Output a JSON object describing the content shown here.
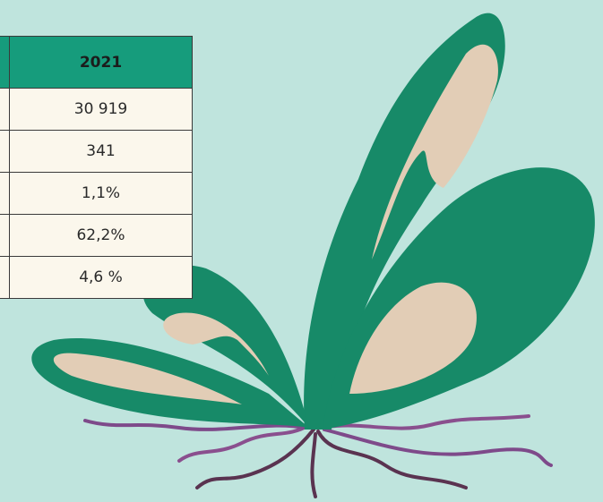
{
  "table": {
    "header": "2021",
    "rows": [
      "30 919",
      "341",
      "1,1%",
      "62,2%",
      "4,6 %"
    ]
  }
}
